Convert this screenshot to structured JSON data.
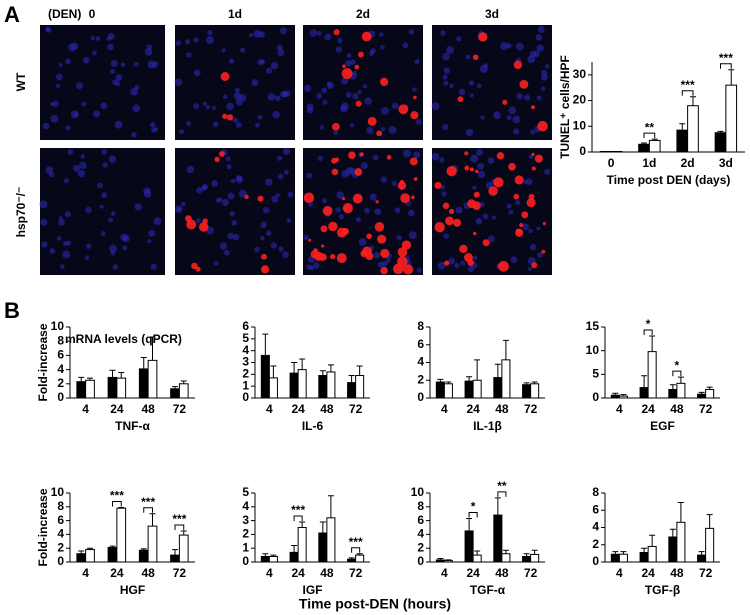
{
  "panels": {
    "a": {
      "label": "A",
      "den_label": "(DEN)",
      "columns": [
        "0",
        "1d",
        "2d",
        "3d"
      ],
      "rows": [
        "WT",
        "hsp70⁻/⁻"
      ]
    },
    "b": {
      "label": "B",
      "subtitle": "mRNA  levels (qPCR)",
      "xlabel": "Time post-DEN (hours)"
    }
  },
  "chart_data": [
    {
      "type": "bar",
      "ylabel": "TUNEL⁺ cells/HPF",
      "xlabel": "Time post DEN (days)",
      "categories": [
        "0",
        "1d",
        "2d",
        "3d"
      ],
      "series": [
        {
          "color": "#000000",
          "values": [
            0.2,
            3,
            8.5,
            7.5
          ],
          "errors": [
            0,
            0.5,
            2.5,
            0.5
          ]
        },
        {
          "color": "#ffffff",
          "values": [
            0.2,
            4.5,
            18,
            26
          ],
          "errors": [
            0,
            0.5,
            3.5,
            6
          ]
        }
      ],
      "ylim": [
        0,
        35
      ],
      "yticks": [
        0,
        10,
        20,
        30
      ],
      "significance": [
        null,
        "**",
        "***",
        "***"
      ]
    },
    {
      "type": "bar",
      "ylabel": "Fold-increase",
      "xlabel": "TNF-α",
      "categories": [
        "4",
        "24",
        "48",
        "72"
      ],
      "series": [
        {
          "color": "#000000",
          "values": [
            2.3,
            2.9,
            4.1,
            1.3
          ],
          "errors": [
            0.6,
            1,
            1.6,
            0.3
          ]
        },
        {
          "color": "#ffffff",
          "values": [
            2.5,
            2.8,
            5.3,
            2.0
          ],
          "errors": [
            0.3,
            0.8,
            3.3,
            0.4
          ]
        }
      ],
      "ylim": [
        0,
        10
      ],
      "yticks": [
        0,
        2,
        4,
        6,
        8,
        10
      ],
      "significance": [
        null,
        null,
        null,
        null
      ]
    },
    {
      "type": "bar",
      "xlabel": "IL-6",
      "categories": [
        "4",
        "24",
        "48",
        "72"
      ],
      "series": [
        {
          "color": "#000000",
          "values": [
            3.6,
            2.1,
            1.9,
            1.3
          ],
          "errors": [
            1.8,
            0.9,
            0.4,
            0.6
          ]
        },
        {
          "color": "#ffffff",
          "values": [
            1.7,
            2.4,
            2.2,
            1.9
          ],
          "errors": [
            1.0,
            0.9,
            0.6,
            0.8
          ]
        }
      ],
      "ylim": [
        0,
        6
      ],
      "yticks": [
        0,
        1,
        2,
        3,
        4,
        5,
        6
      ],
      "significance": [
        null,
        null,
        null,
        null
      ]
    },
    {
      "type": "bar",
      "xlabel": "IL-1β",
      "categories": [
        "4",
        "24",
        "48",
        "72"
      ],
      "series": [
        {
          "color": "#000000",
          "values": [
            1.8,
            1.9,
            2.3,
            1.5
          ],
          "errors": [
            0.3,
            0.5,
            1.5,
            0.2
          ]
        },
        {
          "color": "#ffffff",
          "values": [
            1.6,
            2.0,
            4.3,
            1.6
          ],
          "errors": [
            0.2,
            2.3,
            2.2,
            0.2
          ]
        }
      ],
      "ylim": [
        0,
        8
      ],
      "yticks": [
        0,
        2,
        4,
        6,
        8
      ],
      "significance": [
        null,
        null,
        null,
        null
      ]
    },
    {
      "type": "bar",
      "xlabel": "EGF",
      "categories": [
        "4",
        "24",
        "48",
        "72"
      ],
      "series": [
        {
          "color": "#000000",
          "values": [
            0.6,
            2.2,
            1.8,
            0.8
          ],
          "errors": [
            0.4,
            2.5,
            1.0,
            0.4
          ]
        },
        {
          "color": "#ffffff",
          "values": [
            0.4,
            9.8,
            3.1,
            1.8
          ],
          "errors": [
            0.3,
            3.3,
            1.3,
            0.5
          ]
        }
      ],
      "ylim": [
        0,
        15
      ],
      "yticks": [
        0,
        5,
        10,
        15
      ],
      "significance": [
        null,
        "*",
        "*",
        null
      ]
    },
    {
      "type": "bar",
      "ylabel": "Fold-increase",
      "xlabel": "HGF",
      "categories": [
        "4",
        "24",
        "48",
        "72"
      ],
      "series": [
        {
          "color": "#000000",
          "values": [
            1.2,
            2.1,
            1.7,
            1.0
          ],
          "errors": [
            0.4,
            0.2,
            0.2,
            0.8
          ]
        },
        {
          "color": "#ffffff",
          "values": [
            1.8,
            7.8,
            5.2,
            3.9
          ],
          "errors": [
            0.2,
            0.1,
            1.8,
            0.6
          ]
        }
      ],
      "ylim": [
        0,
        10
      ],
      "yticks": [
        0,
        2,
        4,
        6,
        8,
        10
      ],
      "significance": [
        null,
        "***",
        "***",
        "***"
      ]
    },
    {
      "type": "bar",
      "xlabel": "IGF",
      "categories": [
        "4",
        "24",
        "48",
        "72"
      ],
      "series": [
        {
          "color": "#000000",
          "values": [
            0.4,
            0.7,
            2.1,
            0.2
          ],
          "errors": [
            0.2,
            0.5,
            0.8,
            0.1
          ]
        },
        {
          "color": "#ffffff",
          "values": [
            0.4,
            2.5,
            3.2,
            0.5
          ],
          "errors": [
            0.1,
            0.4,
            1.6,
            0.1
          ]
        }
      ],
      "ylim": [
        0,
        5
      ],
      "yticks": [
        0,
        1,
        2,
        3,
        4,
        5
      ],
      "significance": [
        null,
        "***",
        null,
        "***"
      ]
    },
    {
      "type": "bar",
      "xlabel": "TGF-α",
      "categories": [
        "4",
        "24",
        "48",
        "72"
      ],
      "series": [
        {
          "color": "#000000",
          "values": [
            0.3,
            4.5,
            6.8,
            0.8
          ],
          "errors": [
            0.2,
            1.8,
            2.5,
            0.4
          ]
        },
        {
          "color": "#ffffff",
          "values": [
            0.2,
            1.0,
            1.2,
            1.1
          ],
          "errors": [
            0.1,
            0.6,
            0.5,
            0.6
          ]
        }
      ],
      "ylim": [
        0,
        10
      ],
      "yticks": [
        0,
        2,
        4,
        6,
        8,
        10
      ],
      "significance": [
        null,
        "*",
        "**",
        null
      ]
    },
    {
      "type": "bar",
      "xlabel": "TGF-β",
      "categories": [
        "4",
        "24",
        "48",
        "72"
      ],
      "series": [
        {
          "color": "#000000",
          "values": [
            0.9,
            1.1,
            2.9,
            0.8
          ],
          "errors": [
            0.3,
            0.5,
            0.9,
            0.4
          ]
        },
        {
          "color": "#ffffff",
          "values": [
            0.9,
            1.8,
            4.6,
            3.9
          ],
          "errors": [
            0.3,
            1.3,
            2.3,
            1.6
          ]
        }
      ],
      "ylim": [
        0,
        8
      ],
      "yticks": [
        0,
        2,
        4,
        6,
        8
      ],
      "significance": [
        null,
        null,
        null,
        null
      ]
    }
  ]
}
